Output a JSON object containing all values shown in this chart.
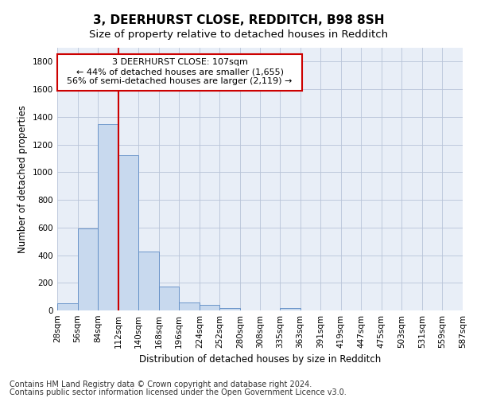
{
  "title": "3, DEERHURST CLOSE, REDDITCH, B98 8SH",
  "subtitle": "Size of property relative to detached houses in Redditch",
  "xlabel": "Distribution of detached houses by size in Redditch",
  "ylabel": "Number of detached properties",
  "bar_color": "#c8d9ee",
  "bar_edge_color": "#5b8ac4",
  "vline_color": "#cc0000",
  "annotation_line1": "3 DEERHURST CLOSE: 107sqm",
  "annotation_line2": "← 44% of detached houses are smaller (1,655)",
  "annotation_line3": "56% of semi-detached houses are larger (2,119) →",
  "footer1": "Contains HM Land Registry data © Crown copyright and database right 2024.",
  "footer2": "Contains public sector information licensed under the Open Government Licence v3.0.",
  "bin_edges": [
    28,
    56,
    84,
    112,
    140,
    168,
    196,
    224,
    252,
    280,
    308,
    335,
    363,
    391,
    419,
    447,
    475,
    503,
    531,
    559,
    587
  ],
  "bar_heights": [
    50,
    595,
    1350,
    1120,
    425,
    170,
    60,
    38,
    15,
    0,
    0,
    15,
    0,
    0,
    0,
    0,
    0,
    0,
    0,
    0
  ],
  "ylim": [
    0,
    1900
  ],
  "yticks": [
    0,
    200,
    400,
    600,
    800,
    1000,
    1200,
    1400,
    1600,
    1800
  ],
  "background_color": "#ffffff",
  "plot_bg_color": "#e8eef7",
  "grid_color": "#b8c4d8",
  "title_fontsize": 11,
  "subtitle_fontsize": 9.5,
  "axis_label_fontsize": 8.5,
  "tick_fontsize": 7.5,
  "footer_fontsize": 7
}
